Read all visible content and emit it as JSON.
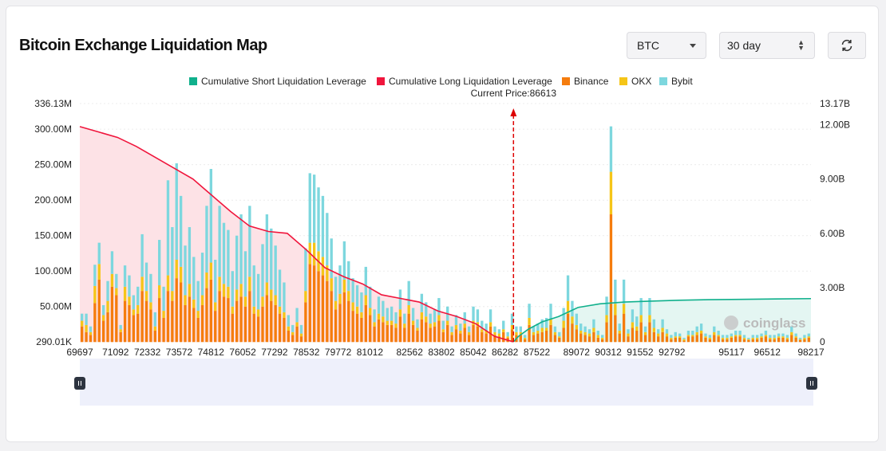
{
  "header": {
    "title": "Bitcoin Exchange Liquidation Map"
  },
  "controls": {
    "coin": "BTC",
    "range": "30 day",
    "refresh_icon": "refresh-icon"
  },
  "colors": {
    "short": "#10b08c",
    "long": "#f0153c",
    "binance": "#f57c0d",
    "okx": "#f5c518",
    "bybit": "#7dd7de",
    "long_fill": "#fde2e6",
    "short_fill": "#e4f6f2",
    "slider_bg": "#eef0fb"
  },
  "watermark": "coinglass",
  "chart_data": {
    "type": "bar",
    "stacked": true,
    "title": "",
    "annotation": "Current Price:86613",
    "current_price": 86613,
    "x_tick_labels": [
      "69697",
      "71092",
      "72332",
      "73572",
      "74812",
      "76052",
      "77292",
      "78532",
      "79772",
      "81012",
      "82562",
      "83802",
      "85042",
      "86282",
      "87522",
      "89072",
      "90312",
      "91552",
      "92792",
      "95117",
      "96512",
      "98217"
    ],
    "y_left": {
      "ticks": [
        "336.13M",
        "300.00M",
        "250.00M",
        "200.00M",
        "150.00M",
        "100.00M",
        "50.00M",
        "290.01K"
      ],
      "min": 0.29,
      "max": 336.13,
      "unit": "M"
    },
    "y_right": {
      "ticks": [
        "13.17B",
        "12.00B",
        "9.00B",
        "6.00B",
        "3.00B",
        "0"
      ],
      "min": 0,
      "max": 13.17,
      "unit": "B"
    },
    "x_range": [
      69697,
      98217
    ],
    "legend": [
      "Cumulative Short Liquidation Leverage",
      "Cumulative Long Liquidation Leverage",
      "Binance",
      "OKX",
      "Bybit"
    ],
    "series": [
      {
        "name": "Binance",
        "values": [
          22,
          14,
          10,
          55,
          88,
          30,
          42,
          78,
          66,
          14,
          58,
          52,
          38,
          40,
          72,
          58,
          46,
          16,
          62,
          34,
          72,
          58,
          90,
          84,
          52,
          64,
          48,
          34,
          52,
          76,
          88,
          44,
          72,
          64,
          62,
          40,
          58,
          64,
          50,
          72,
          40,
          36,
          50,
          66,
          58,
          52,
          40,
          34,
          16,
          10,
          22,
          8,
          56,
          110,
          108,
          100,
          94,
          86,
          72,
          46,
          54,
          70,
          58,
          44,
          40,
          34,
          52,
          38,
          22,
          32,
          28,
          24,
          24,
          20,
          36,
          20,
          40,
          24,
          16,
          32,
          28,
          20,
          22,
          30,
          14,
          24,
          10,
          18,
          12,
          20,
          10,
          24,
          22,
          14,
          12,
          22,
          10,
          8,
          14,
          6,
          18,
          10,
          10,
          4,
          24,
          10,
          12,
          14,
          16,
          24,
          10,
          6,
          20,
          40,
          26,
          18,
          12,
          10,
          8,
          14,
          6,
          4,
          28,
          180,
          38,
          12,
          40,
          8,
          20,
          16,
          28,
          10,
          28,
          14,
          8,
          14,
          8,
          4,
          6,
          6,
          2,
          8,
          8,
          10,
          12,
          6,
          4,
          10,
          8,
          4,
          4,
          6,
          8,
          8,
          4,
          3,
          4,
          4,
          6,
          8,
          4,
          4,
          6,
          6,
          4,
          10,
          6,
          3,
          4,
          6
        ]
      },
      {
        "name": "OKX",
        "values": [
          8,
          10,
          4,
          24,
          22,
          8,
          16,
          18,
          10,
          4,
          20,
          12,
          8,
          12,
          20,
          14,
          10,
          6,
          18,
          10,
          22,
          14,
          26,
          22,
          14,
          18,
          12,
          10,
          14,
          22,
          24,
          12,
          20,
          18,
          16,
          10,
          16,
          18,
          14,
          20,
          10,
          10,
          14,
          18,
          16,
          14,
          10,
          8,
          6,
          4,
          6,
          4,
          16,
          30,
          32,
          28,
          26,
          22,
          18,
          12,
          14,
          18,
          14,
          12,
          10,
          8,
          14,
          10,
          6,
          8,
          8,
          6,
          6,
          6,
          10,
          6,
          12,
          6,
          4,
          10,
          8,
          6,
          6,
          8,
          4,
          6,
          4,
          6,
          4,
          6,
          4,
          6,
          6,
          4,
          4,
          6,
          4,
          4,
          4,
          2,
          6,
          4,
          4,
          2,
          10,
          4,
          4,
          6,
          4,
          8,
          4,
          2,
          10,
          18,
          10,
          6,
          4,
          4,
          4,
          6,
          4,
          2,
          10,
          60,
          16,
          4,
          14,
          4,
          8,
          6,
          10,
          4,
          10,
          6,
          4,
          6,
          4,
          2,
          2,
          2,
          2,
          2,
          2,
          4,
          4,
          2,
          2,
          4,
          2,
          2,
          2,
          2,
          2,
          2,
          2,
          1,
          2,
          2,
          2,
          2,
          2,
          2,
          2,
          2,
          2,
          4,
          2,
          1,
          2,
          2
        ]
      },
      {
        "name": "Bybit",
        "values": [
          10,
          16,
          8,
          30,
          30,
          14,
          28,
          32,
          20,
          6,
          30,
          30,
          20,
          26,
          60,
          40,
          40,
          20,
          64,
          34,
          134,
          90,
          136,
          100,
          70,
          80,
          60,
          42,
          60,
          94,
          132,
          60,
          100,
          86,
          80,
          50,
          76,
          98,
          64,
          100,
          58,
          50,
          74,
          96,
          86,
          70,
          52,
          42,
          16,
          10,
          20,
          12,
          60,
          98,
          96,
          90,
          86,
          74,
          56,
          34,
          40,
          54,
          42,
          34,
          30,
          28,
          40,
          30,
          18,
          24,
          22,
          18,
          20,
          16,
          28,
          14,
          34,
          18,
          12,
          26,
          20,
          14,
          18,
          24,
          12,
          20,
          8,
          14,
          10,
          16,
          8,
          20,
          18,
          12,
          10,
          18,
          8,
          6,
          12,
          6,
          16,
          8,
          8,
          4,
          20,
          8,
          10,
          12,
          14,
          22,
          8,
          6,
          18,
          36,
          22,
          16,
          10,
          8,
          6,
          12,
          6,
          4,
          26,
          64,
          34,
          10,
          34,
          6,
          18,
          14,
          24,
          8,
          24,
          12,
          6,
          12,
          6,
          4,
          6,
          4,
          2,
          6,
          6,
          8,
          10,
          4,
          4,
          8,
          6,
          4,
          4,
          4,
          6,
          6,
          4,
          2,
          4,
          4,
          4,
          6,
          4,
          4,
          4,
          4,
          4,
          8,
          4,
          2,
          4,
          4
        ]
      }
    ],
    "cumulative_long_B": [
      11.9,
      11.6,
      11.3,
      10.8,
      10.2,
      9.6,
      9.0,
      8.1,
      7.2,
      6.4,
      6.1,
      6.0,
      5.1,
      4.1,
      3.6,
      3.2,
      2.6,
      2.4,
      2.2,
      1.7,
      1.4,
      1.0,
      0.3,
      0
    ],
    "cumulative_short_B": [
      0,
      0.3,
      0.7,
      1.1,
      1.4,
      1.9,
      2.1,
      2.2,
      2.25,
      2.3,
      2.33,
      2.35,
      2.37,
      2.39
    ]
  }
}
